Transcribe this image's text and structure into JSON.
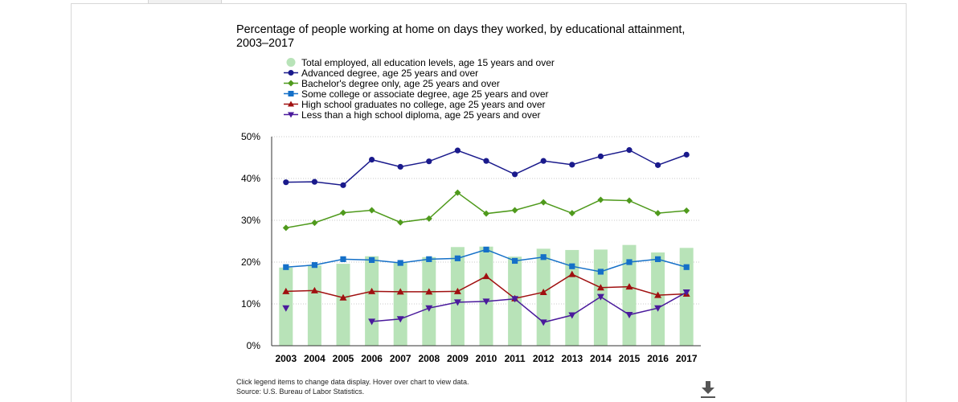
{
  "chart_data": {
    "type": "bar+line",
    "title": "Percentage of people working at home on days they worked, by educational attainment, 2003–2017",
    "categories": [
      "2003",
      "2004",
      "2005",
      "2006",
      "2007",
      "2008",
      "2009",
      "2010",
      "2011",
      "2012",
      "2013",
      "2014",
      "2015",
      "2016",
      "2017"
    ],
    "y_ticks": [
      "0%",
      "10%",
      "20%",
      "30%",
      "40%",
      "50%"
    ],
    "ylim": [
      0,
      50
    ],
    "grid": true,
    "legend_position": "top",
    "series": [
      {
        "name": "Total employed, all education levels, age 15 years and over",
        "kind": "bar",
        "marker": "circle",
        "color": "#b8e3b8",
        "values": [
          18.7,
          19.2,
          19.6,
          21.4,
          19.9,
          21.2,
          23.6,
          23.7,
          21.3,
          23.2,
          22.9,
          23.0,
          24.1,
          22.3,
          23.4
        ]
      },
      {
        "name": "Advanced degree, age 25 years and over",
        "kind": "line",
        "marker": "circle",
        "color": "#1a1a8c",
        "values": [
          39.1,
          39.2,
          38.4,
          44.5,
          42.8,
          44.1,
          46.7,
          44.2,
          41.0,
          44.2,
          43.3,
          45.3,
          46.8,
          43.2,
          45.7
        ]
      },
      {
        "name": "Bachelor's degree only, age 25 years and over",
        "kind": "line",
        "marker": "diamond",
        "color": "#4f9a1c",
        "values": [
          28.2,
          29.4,
          31.8,
          32.4,
          29.5,
          30.4,
          36.6,
          31.6,
          32.4,
          34.3,
          31.7,
          34.9,
          34.7,
          31.7,
          32.3
        ]
      },
      {
        "name": "Some college or associate degree, age 25 years and over",
        "kind": "line",
        "marker": "square",
        "color": "#1570c8",
        "values": [
          18.8,
          19.3,
          20.7,
          20.5,
          19.8,
          20.7,
          20.9,
          23.0,
          20.3,
          21.2,
          19.0,
          17.7,
          20.0,
          20.7,
          18.8
        ]
      },
      {
        "name": "High school graduates no college, age 25 years and over",
        "kind": "line",
        "marker": "triangle",
        "color": "#a01010",
        "values": [
          13.0,
          13.2,
          11.5,
          13.0,
          12.9,
          12.9,
          13.0,
          16.6,
          11.3,
          12.8,
          17.1,
          13.9,
          14.1,
          12.1,
          12.4
        ]
      },
      {
        "name": "Less than a high school diploma, age 25 years and over",
        "kind": "line",
        "marker": "triangle-down",
        "color": "#4a1a9c",
        "values": [
          9.0,
          null,
          null,
          5.8,
          6.4,
          9.0,
          10.4,
          10.6,
          11.2,
          5.6,
          7.3,
          11.7,
          7.4,
          9.0,
          12.8
        ]
      }
    ]
  },
  "notes": {
    "line1": "Click legend items to change data display. Hover over chart to view data.",
    "line2": "Source: U.S. Bureau of Labor Statistics."
  },
  "icons": {
    "download": "download-icon"
  }
}
